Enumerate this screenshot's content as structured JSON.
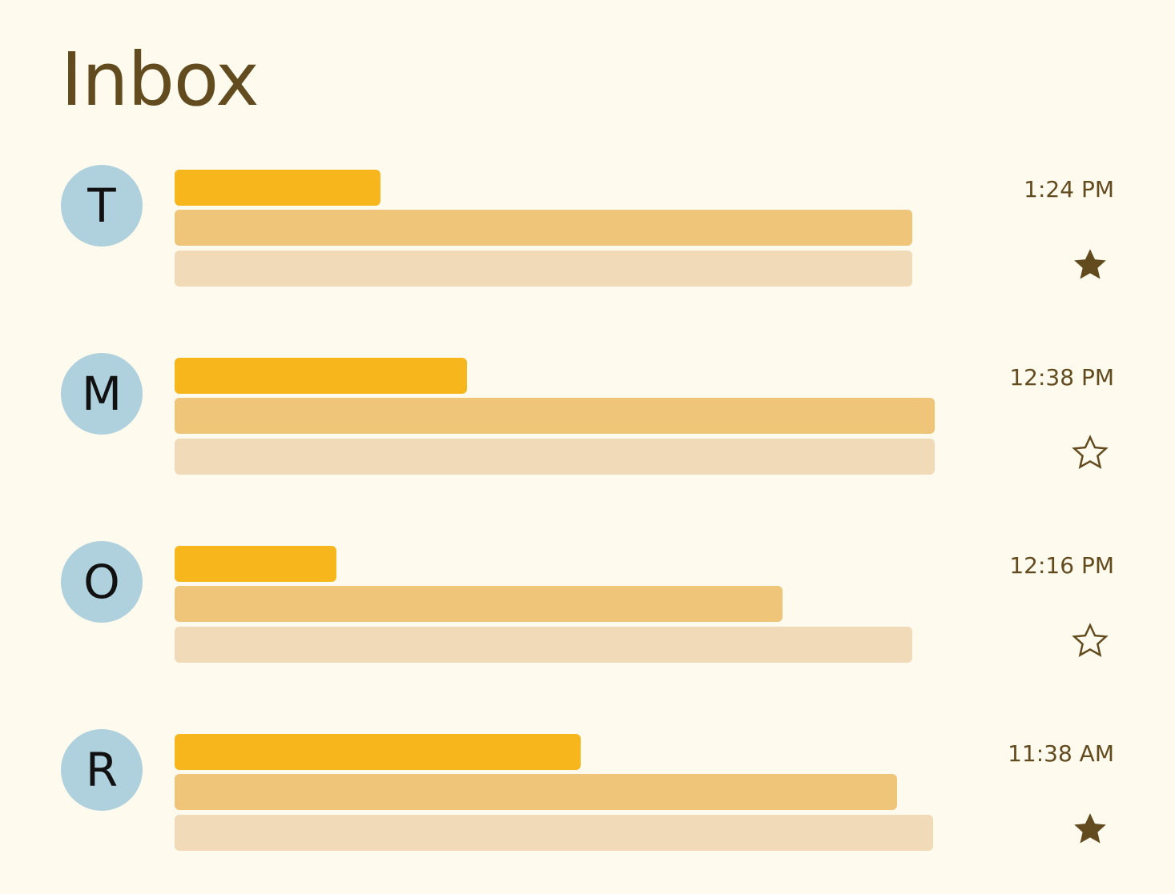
{
  "page": {
    "title": "Inbox"
  },
  "colors": {
    "background": "#FFFAEE",
    "title": "#624B1E",
    "avatar": "#AFD0DD",
    "sender_bar": "#F7B61B",
    "subject_bar": "#EFC57A",
    "preview_bar": "#F1DAB7",
    "star": "#624B1E"
  },
  "messages": [
    {
      "initial": "T",
      "time": "1:24 PM",
      "starred": true,
      "icon": "star-filled-icon"
    },
    {
      "initial": "M",
      "time": "12:38 PM",
      "starred": false,
      "icon": "star-outline-icon"
    },
    {
      "initial": "O",
      "time": "12:16 PM",
      "starred": false,
      "icon": "star-outline-icon"
    },
    {
      "initial": "R",
      "time": "11:38 AM",
      "starred": true,
      "icon": "star-filled-icon"
    }
  ]
}
